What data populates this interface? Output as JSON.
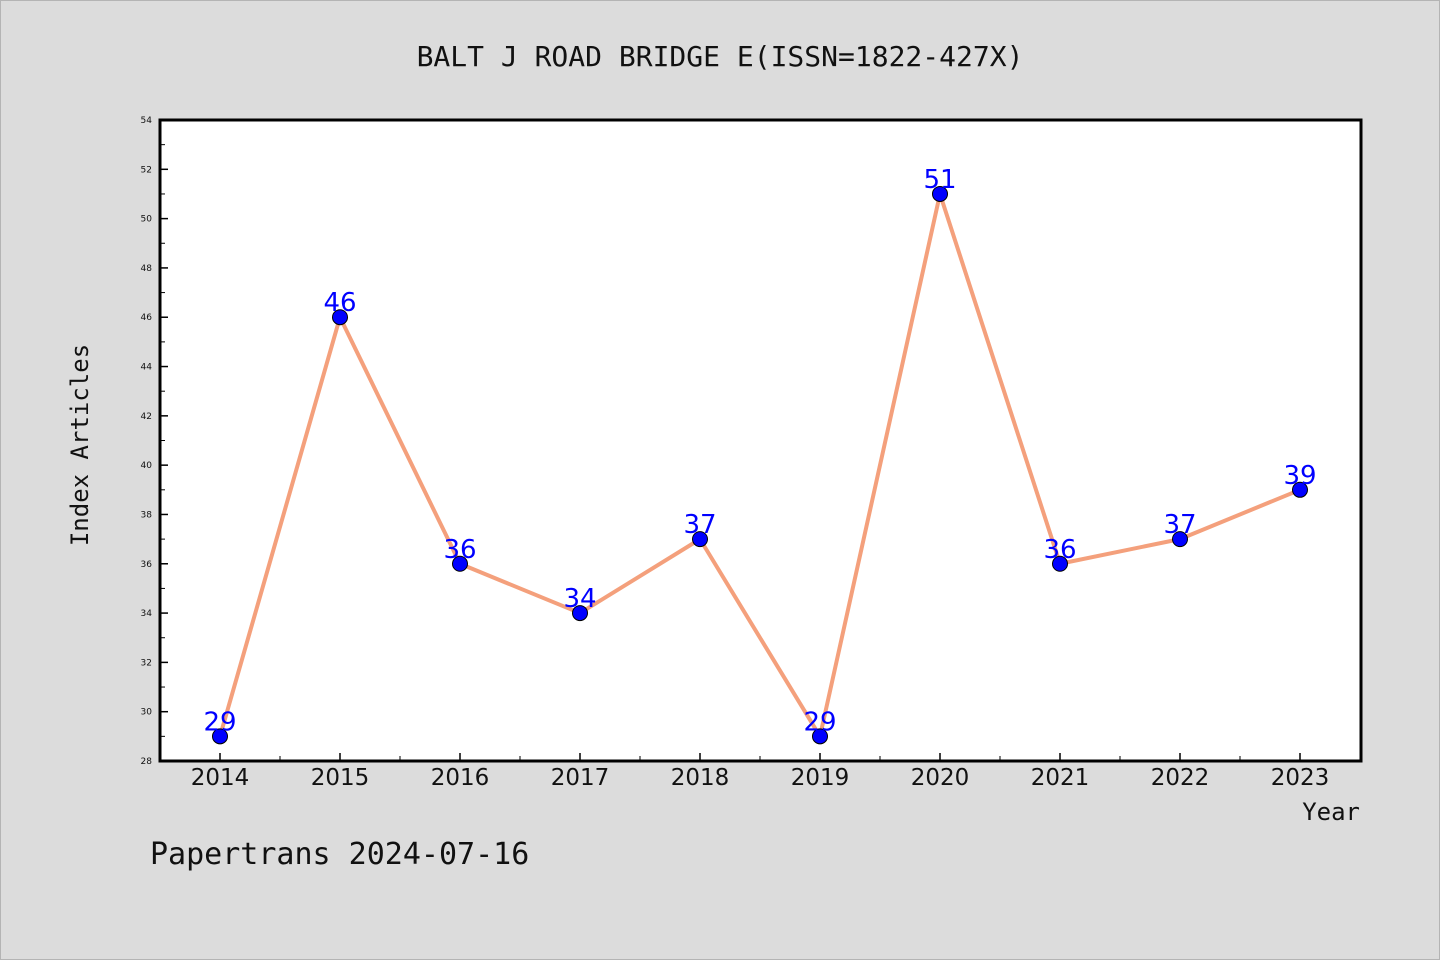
{
  "chart_data": {
    "type": "line",
    "title": "BALT J ROAD BRIDGE E(ISSN=1822-427X)",
    "xlabel": "Year",
    "ylabel": "Index Articles",
    "categories": [
      "2014",
      "2015",
      "2016",
      "2017",
      "2018",
      "2019",
      "2020",
      "2021",
      "2022",
      "2023"
    ],
    "series": [
      {
        "values": [
          29,
          46,
          36,
          34,
          37,
          29,
          51,
          36,
          37,
          39
        ]
      }
    ],
    "ylim": [
      28,
      54
    ],
    "yticks": [
      28,
      30,
      32,
      34,
      36,
      38,
      40,
      42,
      44,
      46,
      48,
      50,
      52,
      54
    ],
    "grid": false,
    "line_color": "#f4a07c",
    "marker_color": "#0000ff",
    "label_color": "#0000ff"
  },
  "footer": {
    "text": "Papertrans 2024-07-16"
  }
}
